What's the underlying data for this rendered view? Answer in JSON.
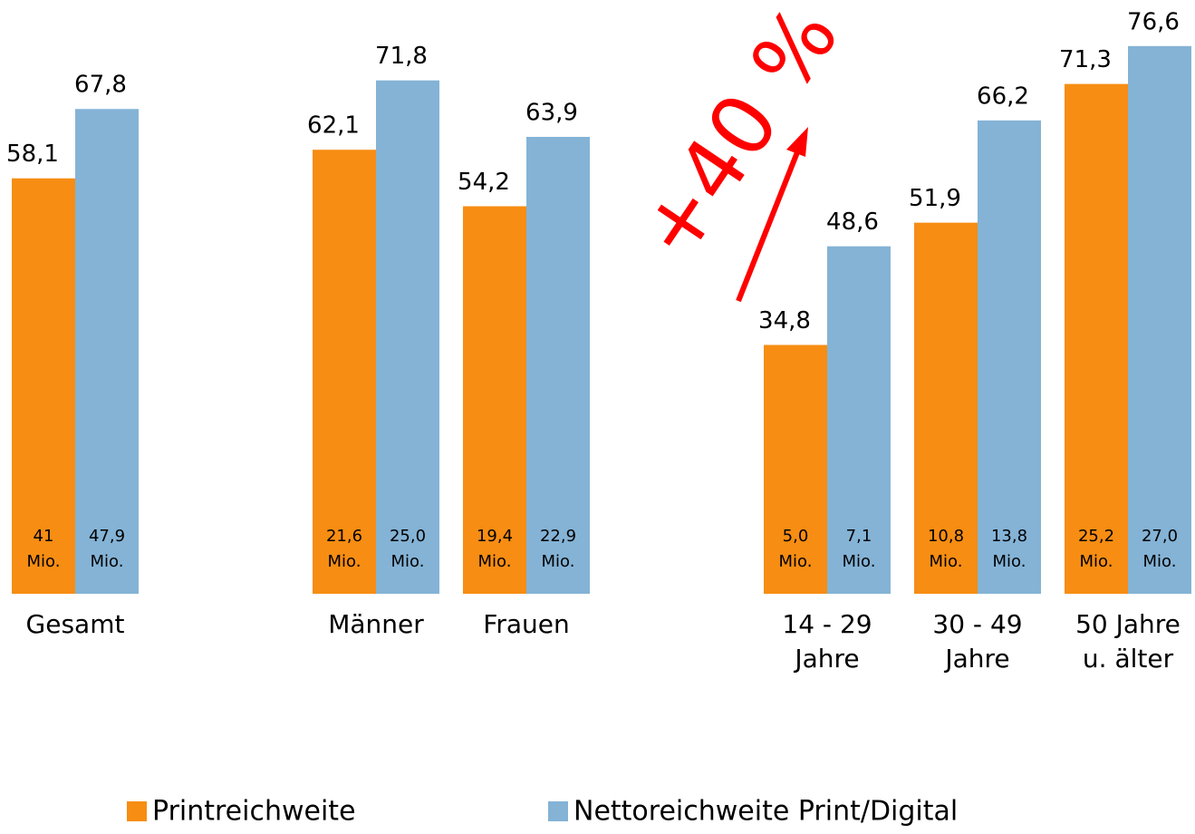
{
  "chart_data": {
    "type": "bar",
    "categories": [
      [
        "Gesamt"
      ],
      null,
      [
        "Männer"
      ],
      [
        "Frauen"
      ],
      null,
      [
        "14 - 29",
        "Jahre"
      ],
      [
        "30 - 49",
        "Jahre"
      ],
      [
        "50 Jahre",
        "u. älter"
      ]
    ],
    "series": [
      {
        "name": "Printreichweite",
        "color": "#f78d13",
        "values": [
          58.1,
          null,
          62.1,
          54.2,
          null,
          34.8,
          51.9,
          71.3
        ],
        "value_labels": [
          "58,1",
          null,
          "62,1",
          "54,2",
          null,
          "34,8",
          "51,9",
          "71,3"
        ],
        "inner_labels": [
          "41",
          null,
          "21,6",
          "19,4",
          null,
          "5,0",
          "10,8",
          "25,2"
        ]
      },
      {
        "name": "Nettoreichweite Print/Digital",
        "color": "#84b3d6",
        "values": [
          67.8,
          null,
          71.8,
          63.9,
          null,
          48.6,
          66.2,
          76.6
        ],
        "value_labels": [
          "67,8",
          null,
          "71,8",
          "63,9",
          null,
          "48,6",
          "66,2",
          "76,6"
        ],
        "inner_labels": [
          "47,9",
          null,
          "25,0",
          "22,9",
          null,
          "7,1",
          "13,8",
          "27,0"
        ]
      }
    ],
    "inner_unit": "Mio.",
    "annotation": "+40 %",
    "annotation_color": "#ff0000",
    "ylim": [
      0,
      80
    ],
    "grid": false,
    "legend": "bottom"
  }
}
